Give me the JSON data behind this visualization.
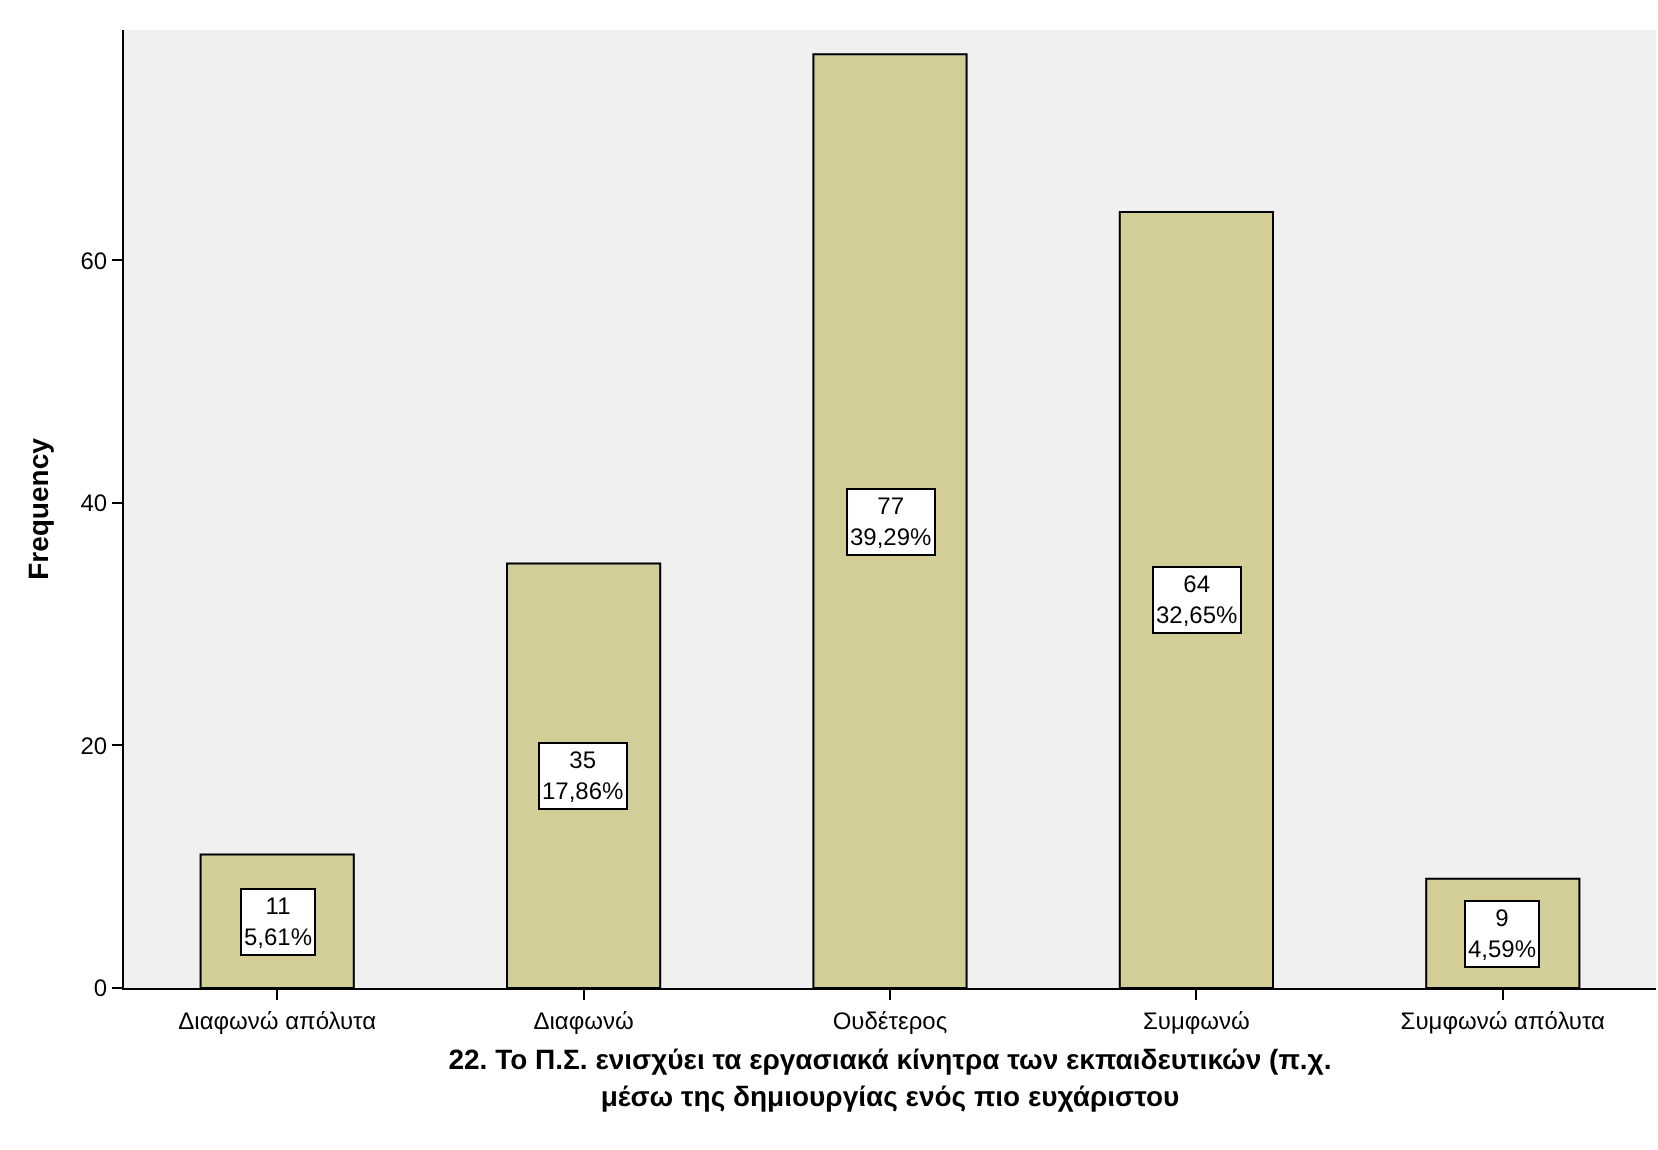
{
  "chart_data": {
    "type": "bar",
    "xlabel": "22. Το Π.Σ. ενισχύει τα εργασιακά κίνητρα των εκπαιδευτικών (π.χ.\nμέσω της δημιουργίας ενός πιο ευχάριστου",
    "ylabel": "Frequency",
    "categories": [
      "Διαφωνώ απόλυτα",
      "Διαφωνώ",
      "Ουδέτερος",
      "Συμφωνώ",
      "Συμφωνώ απόλυτα"
    ],
    "values": [
      11,
      35,
      77,
      64,
      9
    ],
    "color": "#d3ce98",
    "value_labels": [
      "11\n5,61%",
      "35\n17,86%",
      "77\n39,29%",
      "64\n32,65%",
      "9\n4,59%"
    ],
    "ylim": [
      0,
      79
    ],
    "yticks": [
      0,
      20,
      40,
      60
    ],
    "grid": false
  }
}
